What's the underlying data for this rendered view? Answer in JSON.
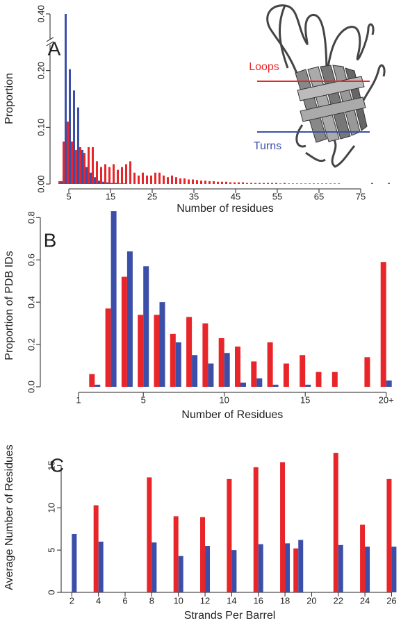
{
  "chart_data": [
    {
      "type": "bar",
      "panel": "A",
      "x_label": "Number of residues",
      "y_label": "Proportion",
      "x": [
        3,
        4,
        5,
        6,
        7,
        8,
        9,
        10,
        11,
        12,
        13,
        14,
        15,
        16,
        17,
        18,
        19,
        20,
        21,
        22,
        23,
        24,
        25,
        26,
        27,
        28,
        29,
        30,
        31,
        32,
        33,
        34,
        35,
        36,
        37,
        38,
        39,
        40,
        41,
        42,
        43,
        44,
        45,
        46,
        47,
        48,
        49,
        50,
        51,
        52,
        53,
        54,
        55,
        56,
        57,
        58,
        59,
        60,
        61,
        62,
        63,
        64,
        65,
        66,
        67,
        68,
        69,
        70,
        71,
        72,
        73,
        74,
        75,
        76,
        77,
        78,
        79,
        80,
        81,
        82
      ],
      "series": [
        {
          "name": "Loops",
          "color": "#e8262a",
          "values": [
            0.005,
            0.075,
            0.11,
            0.075,
            0.06,
            0.065,
            0.055,
            0.065,
            0.065,
            0.04,
            0.03,
            0.035,
            0.03,
            0.035,
            0.025,
            0.03,
            0.035,
            0.04,
            0.02,
            0.015,
            0.02,
            0.015,
            0.015,
            0.02,
            0.02,
            0.015,
            0.012,
            0.015,
            0.012,
            0.01,
            0.01,
            0.008,
            0.008,
            0.007,
            0.006,
            0.006,
            0.005,
            0.005,
            0.004,
            0.004,
            0.004,
            0.003,
            0.003,
            0.003,
            0.003,
            0.002,
            0.002,
            0.002,
            0.002,
            0.002,
            0.002,
            0.002,
            0.002,
            0.001,
            0.002,
            0.001,
            0.001,
            0.001,
            0.001,
            0.001,
            0.001,
            0.001,
            0.001,
            0.001,
            0.001,
            0.001,
            0.001,
            0.001,
            null,
            null,
            null,
            null,
            null,
            null,
            null,
            0.002,
            null,
            null,
            null,
            0.002
          ]
        },
        {
          "name": "Turns",
          "color": "#3b4fa8",
          "values": [
            0.005,
            0.4,
            0.205,
            0.165,
            0.135,
            0.06,
            0.03,
            0.02,
            0.012,
            0.006,
            0.004,
            0.003,
            0.002,
            0.002,
            0.001,
            0.001,
            null,
            null,
            null,
            null,
            null,
            null,
            null,
            null,
            null,
            null,
            null,
            null,
            null,
            null,
            null,
            null,
            null,
            null,
            null,
            null,
            null,
            null,
            null,
            null,
            null,
            null,
            null,
            null,
            null,
            null,
            null,
            null,
            null,
            null,
            null,
            null,
            null,
            null,
            null,
            null,
            null,
            null,
            null,
            null,
            null,
            null,
            null,
            null,
            null,
            null,
            null,
            null,
            null,
            null,
            null,
            null,
            null,
            null,
            null,
            null,
            null,
            null,
            null,
            null
          ]
        }
      ],
      "xlim": [
        2,
        83
      ],
      "xticks": [
        5,
        15,
        25,
        35,
        45,
        55,
        65,
        75
      ],
      "ylim": [
        0,
        0.4
      ],
      "yticks": [
        {
          "value": 0,
          "label": "0.00"
        },
        {
          "value": 0.1,
          "label": "0.10"
        },
        {
          "value": 0.2,
          "label": "0.20"
        },
        {
          "value": 0.4,
          "label": "0.40"
        }
      ],
      "y_axis_break": true
    },
    {
      "type": "bar",
      "panel": "B",
      "x_label": "Number of Residues",
      "y_label": "Proportion of PDB IDs",
      "categories": [
        "1",
        null,
        null,
        null,
        "5",
        null,
        null,
        null,
        null,
        "10",
        null,
        null,
        null,
        null,
        "15",
        null,
        null,
        null,
        null,
        "20+"
      ],
      "series": [
        {
          "color": "#e8262a",
          "values": [
            null,
            0.06,
            0.37,
            0.52,
            0.34,
            0.34,
            0.25,
            0.33,
            0.3,
            0.23,
            0.19,
            0.12,
            0.21,
            0.11,
            0.15,
            0.07,
            0.07,
            null,
            0.14,
            0.59
          ]
        },
        {
          "color": "#3b4fa8",
          "values": [
            null,
            0.01,
            0.83,
            0.64,
            0.57,
            0.4,
            0.21,
            0.15,
            0.11,
            0.16,
            0.02,
            0.04,
            0.01,
            null,
            0.01,
            null,
            null,
            null,
            null,
            0.03
          ]
        }
      ],
      "ylim": [
        0,
        0.85
      ],
      "yticks": [
        {
          "value": 0,
          "label": "0.0"
        },
        0.2,
        0.4,
        0.6,
        0.8
      ]
    },
    {
      "type": "bar",
      "panel": "C",
      "x_label": "Strands Per Barrel",
      "y_label": "Average Number of Residues",
      "x": [
        2,
        4,
        8,
        10,
        12,
        14,
        16,
        18,
        19,
        22,
        24,
        26
      ],
      "series": [
        {
          "color": "#e8262a",
          "values": [
            null,
            10.3,
            13.6,
            9.0,
            8.9,
            13.4,
            14.8,
            15.4,
            5.2,
            16.5,
            8.0,
            13.4
          ]
        },
        {
          "color": "#3b4fa8",
          "values": [
            6.9,
            6.0,
            5.9,
            4.3,
            5.5,
            5.0,
            5.7,
            5.8,
            6.2,
            5.6,
            5.4,
            5.4
          ]
        }
      ],
      "xlim": [
        1.2,
        26.5
      ],
      "xticks": [
        2,
        4,
        6,
        8,
        10,
        12,
        14,
        16,
        18,
        20,
        22,
        24,
        26
      ],
      "ylim": [
        0,
        17
      ],
      "yticks": [
        0,
        5,
        10,
        15
      ]
    }
  ]
}
